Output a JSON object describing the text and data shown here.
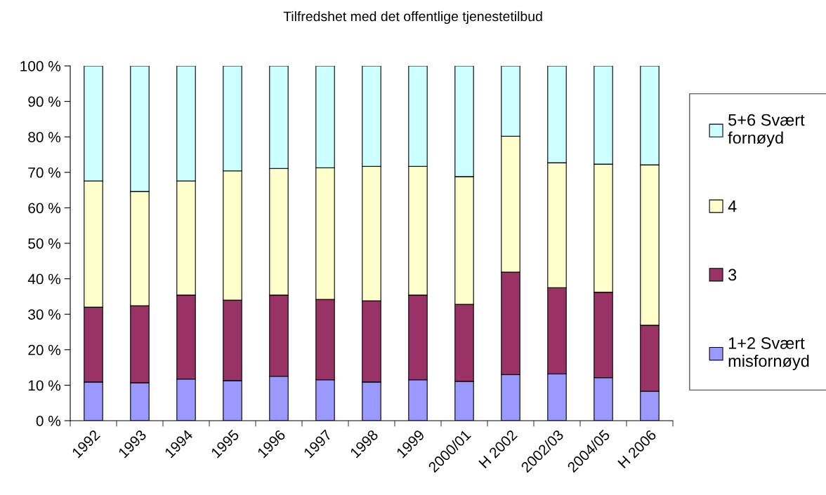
{
  "chart_data": {
    "type": "bar",
    "stacked": true,
    "title": "Tilfredshet med det offentlige tjenestetilbud",
    "categories": [
      "1992",
      "1993",
      "1994",
      "1995",
      "1996",
      "1997",
      "1998",
      "1999",
      "2000/01",
      "H 2002",
      "2002/03",
      "2004/05",
      "H 2006"
    ],
    "series": [
      {
        "name": "1+2 Svært misfornøyd",
        "color": "#9999ff",
        "values": [
          10.9,
          10.7,
          11.7,
          11.3,
          12.5,
          11.5,
          10.9,
          11.5,
          11.1,
          13.0,
          13.2,
          12.1,
          8.3
        ]
      },
      {
        "name": "3",
        "color": "#993366",
        "values": [
          21.1,
          21.7,
          23.7,
          22.7,
          22.9,
          22.7,
          22.9,
          23.9,
          21.7,
          28.9,
          24.3,
          24.1,
          18.6
        ]
      },
      {
        "name": "4",
        "color": "#ffffcc",
        "values": [
          35.6,
          32.2,
          32.2,
          36.4,
          35.7,
          37.1,
          37.9,
          36.3,
          36.0,
          38.3,
          35.2,
          36.1,
          45.2
        ]
      },
      {
        "name": "5+6 Svært fornøyd",
        "color": "#ccffff",
        "values": [
          32.4,
          35.4,
          32.4,
          29.6,
          28.9,
          28.7,
          28.3,
          28.3,
          31.2,
          19.8,
          27.3,
          27.7,
          27.9
        ]
      }
    ],
    "ylim": [
      0,
      100
    ],
    "yticks": [
      {
        "value": 0,
        "label": "0 %"
      },
      {
        "value": 10,
        "label": "10 %"
      },
      {
        "value": 20,
        "label": "20 %"
      },
      {
        "value": 30,
        "label": "30 %"
      },
      {
        "value": 40,
        "label": "40 %"
      },
      {
        "value": 50,
        "label": "50 %"
      },
      {
        "value": 60,
        "label": "60 %"
      },
      {
        "value": 70,
        "label": "70 %"
      },
      {
        "value": 80,
        "label": "80 %"
      },
      {
        "value": 90,
        "label": "90 %"
      },
      {
        "value": 100,
        "label": "100 %"
      }
    ],
    "grid": false,
    "legend": "right"
  }
}
